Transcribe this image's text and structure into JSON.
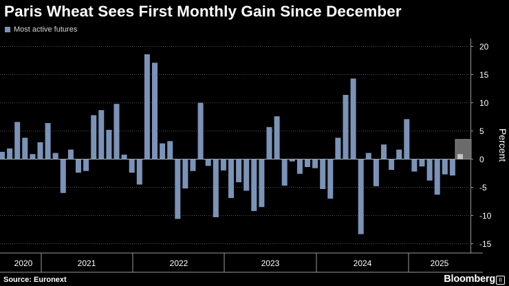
{
  "title": "Paris Wheat Sees First Monthly Gain Since December",
  "source": "Source: Euronext",
  "brand": "Bloomberg",
  "colors": {
    "bar": "#7b93b7",
    "highlight": "#c4c4c4",
    "highlight_box": "#6b6b6b",
    "grid": "#555555",
    "axis": "#9a9a9a"
  },
  "chart_data": {
    "type": "bar",
    "title": "Paris Wheat Sees First Monthly Gain Since December",
    "ylabel": "Percent",
    "ylim": [
      -17,
      22
    ],
    "yticks": [
      20,
      15,
      10,
      5,
      0,
      -5,
      -10,
      -15
    ],
    "grid": true,
    "legend_position": "top-left",
    "year_labels": [
      "2020",
      "2021",
      "2022",
      "2023",
      "2024",
      "2025"
    ],
    "series": [
      {
        "name": "Most active futures",
        "values": [
          1.3,
          1.9,
          6.6,
          3.8,
          0.9,
          3.0,
          6.4,
          1.1,
          -6.0,
          1.7,
          -2.4,
          -2.1,
          7.8,
          8.7,
          5.2,
          9.8,
          0.8,
          -2.4,
          -4.5,
          18.6,
          17.1,
          2.8,
          3.2,
          -10.6,
          -5.2,
          -2.1,
          10.0,
          -1.2,
          -10.3,
          -2.0,
          -6.9,
          -4.1,
          -5.6,
          -9.2,
          -8.5,
          5.7,
          7.6,
          -4.7,
          -0.4,
          -2.6,
          -1.4,
          -1.6,
          -5.3,
          -7.0,
          3.8,
          11.4,
          14.3,
          -13.3,
          1.1,
          -4.8,
          2.6,
          -1.9,
          1.7,
          7.1,
          -2.2,
          -1.3,
          -3.8,
          -6.3,
          -2.7,
          -2.9,
          0.9
        ]
      }
    ]
  }
}
